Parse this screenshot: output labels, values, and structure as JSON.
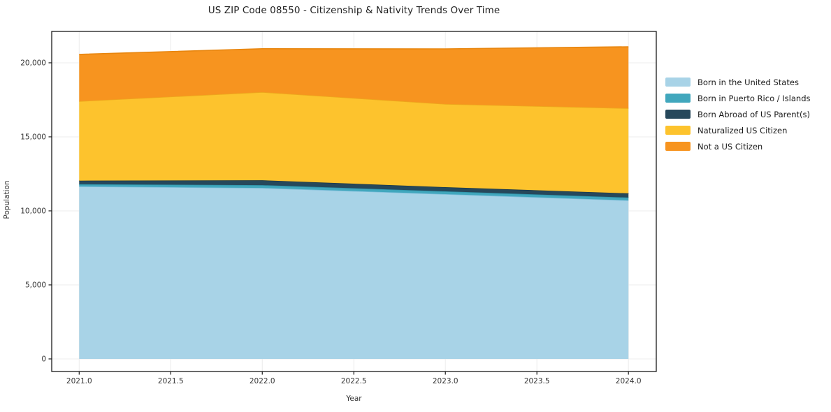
{
  "chart_data": {
    "type": "area",
    "stacked": true,
    "title": "US ZIP Code 08550 - Citizenship & Nativity Trends Over Time",
    "xlabel": "Year",
    "ylabel": "Population",
    "x": [
      2021,
      2022,
      2023,
      2024
    ],
    "series": [
      {
        "name": "Born in the United States",
        "color": "#A8D3E7",
        "edge_color": "#7FBEDB",
        "values": [
          11650,
          11550,
          11130,
          10710
        ]
      },
      {
        "name": "Born in Puerto Rico / Islands",
        "color": "#41A7BD",
        "edge_color": "#2E93A9",
        "values": [
          150,
          190,
          190,
          190
        ]
      },
      {
        "name": "Born Abroad of US Parent(s)",
        "color": "#26485B",
        "edge_color": "#1C394A",
        "values": [
          240,
          330,
          280,
          280
        ]
      },
      {
        "name": "Naturalized US Citizen",
        "color": "#FDC32D",
        "edge_color": "#EDA81C",
        "values": [
          5370,
          5950,
          5620,
          5750
        ]
      },
      {
        "name": "Not a US Citizen",
        "color": "#F7941F",
        "edge_color": "#E8860F",
        "values": [
          3160,
          2930,
          3720,
          4150
        ]
      }
    ],
    "x_tick_labels": [
      "2021.0",
      "2021.5",
      "2022.0",
      "2022.5",
      "2023.0",
      "2023.5",
      "2024.0"
    ],
    "x_tick_values": [
      2021,
      2021.5,
      2022,
      2022.5,
      2023,
      2023.5,
      2024
    ],
    "y_tick_labels": [
      "0",
      "5,000",
      "10,000",
      "15,000",
      "20,000"
    ],
    "y_tick_values": [
      0,
      5000,
      10000,
      15000,
      20000
    ],
    "xlim": [
      2020.85,
      2024.152
    ],
    "ylim": [
      -850,
      22120
    ],
    "grid": true,
    "grid_color": "#ECECEC",
    "spine_color": "#1a1a1a",
    "legend_position": "right"
  }
}
